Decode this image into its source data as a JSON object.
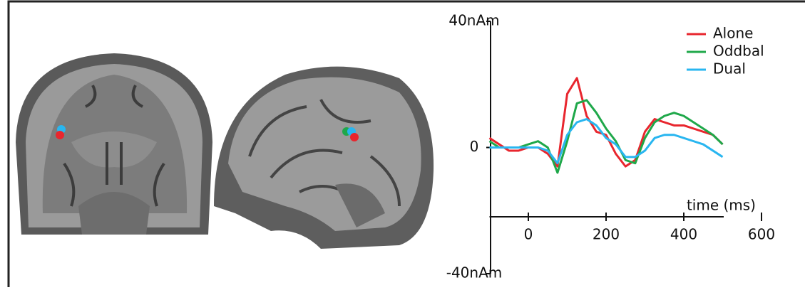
{
  "chart_data": {
    "type": "line",
    "x_label": "time (ms)",
    "x": [
      -100,
      -75,
      -50,
      -25,
      0,
      25,
      50,
      75,
      100,
      125,
      150,
      175,
      200,
      225,
      250,
      275,
      300,
      325,
      350,
      375,
      400,
      425,
      450,
      475,
      500
    ],
    "series": [
      {
        "name": "Alone",
        "color": "#e8262e",
        "values": [
          3,
          1,
          -1,
          -1,
          0,
          0,
          -2,
          -6,
          17,
          22,
          10,
          5,
          4,
          -2,
          -6,
          -4,
          5,
          9,
          8,
          7,
          7,
          6,
          5,
          4,
          1
        ]
      },
      {
        "name": "Oddbal",
        "color": "#1fa84a",
        "values": [
          2,
          0,
          0,
          0,
          1,
          2,
          0,
          -8,
          2,
          14,
          15,
          11,
          6,
          2,
          -4,
          -5,
          3,
          8,
          10,
          11,
          10,
          8,
          6,
          4,
          1
        ]
      },
      {
        "name": "Dual",
        "color": "#29b6f0",
        "values": [
          0,
          0,
          0,
          0,
          0,
          0,
          -1,
          -5,
          4,
          8,
          9,
          7,
          3,
          1,
          -3,
          -3,
          -1,
          3,
          4,
          4,
          3,
          2,
          1,
          -1,
          -3
        ]
      }
    ],
    "xlim": [
      -100,
      600
    ],
    "xticks": [
      0,
      200,
      400,
      600
    ],
    "ylim": [
      -40,
      40
    ],
    "yticks": [
      {
        "value": 40,
        "label": "40nAm"
      },
      0,
      {
        "value": -40,
        "label": "-40nAm"
      }
    ]
  }
}
